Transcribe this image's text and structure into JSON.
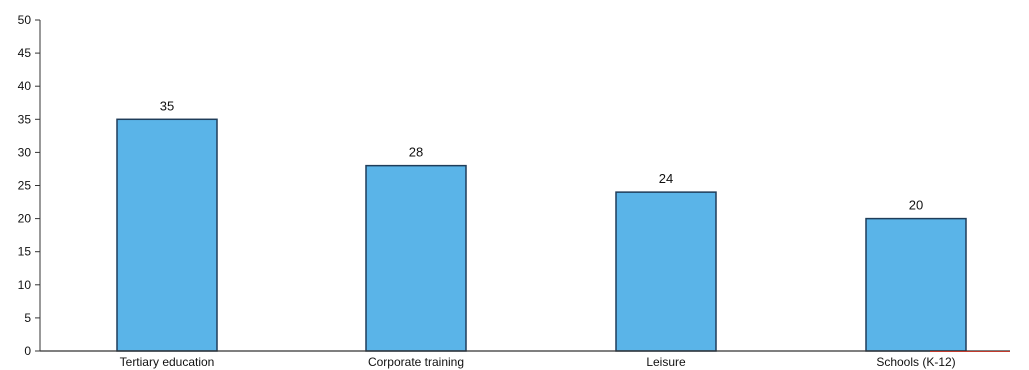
{
  "chart_data": {
    "type": "bar",
    "categories": [
      "Tertiary education",
      "Corporate training",
      "Leisure",
      "Schools (K-12)"
    ],
    "values": [
      35,
      28,
      24,
      20
    ],
    "data_labels": [
      "35",
      "28",
      "24",
      "20"
    ],
    "title": "",
    "xlabel": "",
    "ylabel": "",
    "ylim": [
      0,
      50
    ],
    "yticks": [
      0,
      5,
      10,
      15,
      20,
      25,
      30,
      35,
      40,
      45,
      50
    ],
    "grid": false,
    "legend": "none",
    "colors": {
      "bar_fill": "#5ab4e8",
      "bar_stroke": "#1f3d5a",
      "axis": "#333333",
      "baseline_accent": "#c0392b"
    }
  }
}
